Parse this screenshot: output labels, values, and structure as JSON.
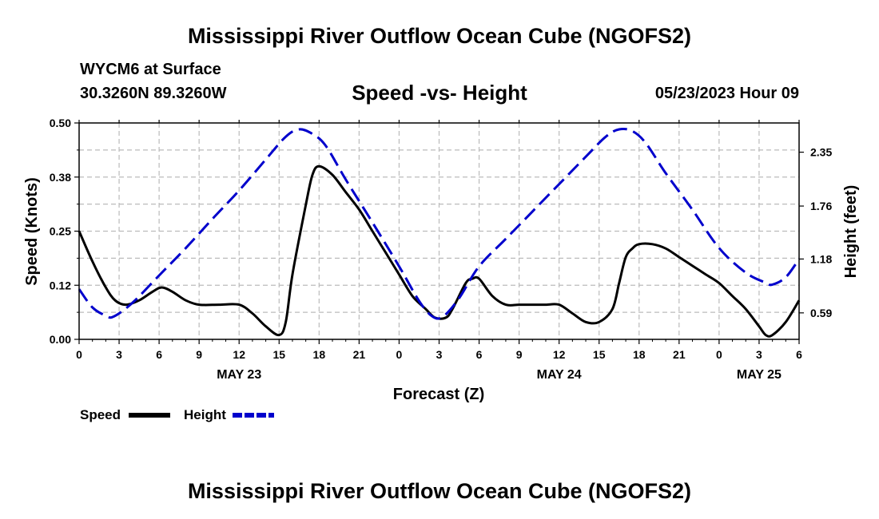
{
  "header": {
    "title": "Mississippi River Outflow Ocean Cube (NGOFS2)",
    "station": "WYCM6 at Surface",
    "coords": "30.3260N  89.3260W",
    "subtitle": "Speed -vs- Height",
    "datetime": "05/23/2023 Hour 09"
  },
  "footer": {
    "title": "Mississippi River Outflow Ocean Cube (NGOFS2)"
  },
  "colors": {
    "speed": "#000000",
    "height": "#0000cc",
    "grid": "#bbbbbb"
  },
  "chart_data": {
    "type": "line",
    "title": "Speed -vs- Height",
    "xlabel": "Forecast (Z)",
    "ylabel": "Speed (Knots)",
    "y2label": "Height (feet)",
    "x_unit": "forecast hour (0 = 00Z May 23)",
    "xlim": [
      0,
      54
    ],
    "ylim": [
      0,
      0.5
    ],
    "y2lim": [
      0.3,
      2.67
    ],
    "x_tick_values": [
      0,
      3,
      6,
      9,
      12,
      15,
      18,
      21,
      24,
      27,
      30,
      33,
      36,
      39,
      42,
      45,
      48,
      51,
      54
    ],
    "x_tick_labels": [
      "0",
      "3",
      "6",
      "9",
      "12",
      "15",
      "18",
      "21",
      "0",
      "3",
      "6",
      "9",
      "12",
      "15",
      "18",
      "21",
      "0",
      "3",
      "6"
    ],
    "date_labels": [
      {
        "x": 12,
        "label": "MAY 23"
      },
      {
        "x": 36,
        "label": "MAY 24"
      },
      {
        "x": 51,
        "label": "MAY 25"
      }
    ],
    "y_ticks": [
      {
        "value": 0.0,
        "label": "0.00"
      },
      {
        "value": 0.125,
        "label": "0.12"
      },
      {
        "value": 0.25,
        "label": "0.25"
      },
      {
        "value": 0.375,
        "label": "0.38"
      },
      {
        "value": 0.5,
        "label": "0.50"
      }
    ],
    "y2_ticks": [
      {
        "value": 0.59,
        "label": "0.59"
      },
      {
        "value": 1.18,
        "label": "1.18"
      },
      {
        "value": 1.76,
        "label": "1.76"
      },
      {
        "value": 2.35,
        "label": "2.35"
      }
    ],
    "series": [
      {
        "name": "Speed",
        "axis": "left",
        "style": "solid",
        "x": [
          0,
          1,
          2,
          2.7,
          3.5,
          4.5,
          5.5,
          6.2,
          7,
          8,
          9,
          10.5,
          12,
          13,
          14,
          15,
          15.5,
          16,
          17,
          17.5,
          18,
          19,
          20,
          21,
          22,
          23,
          24,
          25,
          26,
          26.7,
          27.5,
          28,
          29,
          29.5,
          30,
          31,
          32,
          33,
          34,
          35,
          36,
          37,
          38,
          39,
          40,
          40.5,
          41,
          41.5,
          42,
          43,
          44,
          45,
          46,
          47,
          48,
          49,
          50,
          51,
          51.5,
          52,
          53,
          54
        ],
        "y": [
          0.25,
          0.18,
          0.12,
          0.09,
          0.08,
          0.09,
          0.11,
          0.12,
          0.11,
          0.09,
          0.08,
          0.08,
          0.08,
          0.06,
          0.03,
          0.01,
          0.04,
          0.15,
          0.31,
          0.38,
          0.4,
          0.38,
          0.34,
          0.3,
          0.25,
          0.2,
          0.15,
          0.1,
          0.07,
          0.05,
          0.05,
          0.07,
          0.13,
          0.14,
          0.14,
          0.1,
          0.08,
          0.08,
          0.08,
          0.08,
          0.08,
          0.06,
          0.04,
          0.04,
          0.07,
          0.13,
          0.19,
          0.21,
          0.22,
          0.22,
          0.21,
          0.19,
          0.17,
          0.15,
          0.13,
          0.1,
          0.07,
          0.03,
          0.01,
          0.01,
          0.04,
          0.09
        ]
      },
      {
        "name": "Height",
        "axis": "right",
        "style": "dashed",
        "x": [
          0,
          1,
          2,
          2.6,
          4,
          6,
          8,
          10,
          12,
          14,
          15.5,
          16.5,
          17.5,
          18.5,
          20,
          22,
          24,
          25.5,
          26.5,
          27.3,
          28.5,
          30,
          32,
          34,
          36,
          38,
          39.5,
          40.5,
          41.5,
          42.5,
          44,
          46,
          48,
          50,
          51.5,
          52,
          53,
          54
        ],
        "y": [
          0.85,
          0.65,
          0.56,
          0.55,
          0.7,
          1.0,
          1.3,
          1.62,
          1.93,
          2.27,
          2.52,
          2.6,
          2.55,
          2.42,
          2.05,
          1.58,
          1.1,
          0.72,
          0.55,
          0.55,
          0.75,
          1.1,
          1.4,
          1.7,
          2.0,
          2.3,
          2.52,
          2.6,
          2.58,
          2.45,
          2.12,
          1.72,
          1.3,
          1.03,
          0.92,
          0.9,
          0.98,
          1.18
        ]
      }
    ],
    "legend": [
      {
        "label": "Speed",
        "style": "solid"
      },
      {
        "label": "Height",
        "style": "dashed"
      }
    ],
    "legend_position": "bottom-left",
    "grid": true
  }
}
